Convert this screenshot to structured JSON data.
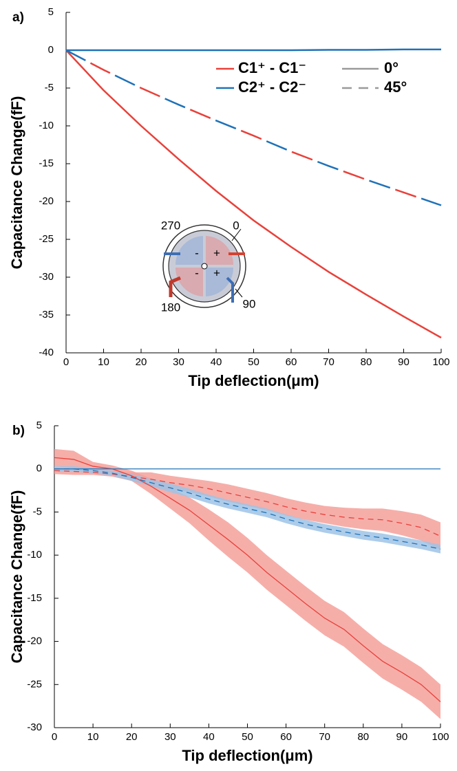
{
  "chart_data": [
    {
      "type": "line",
      "panel_label": "a)",
      "xlabel": "Tip deflection(μm)",
      "ylabel": "Capacitance Change(fF)",
      "x": [
        0,
        10,
        20,
        30,
        40,
        50,
        60,
        70,
        80,
        90,
        100
      ],
      "xlim": [
        0,
        100
      ],
      "ylim": [
        -40,
        5
      ],
      "xticks": [
        0,
        10,
        20,
        30,
        40,
        50,
        60,
        70,
        80,
        90,
        100
      ],
      "yticks": [
        5,
        0,
        -5,
        -10,
        -15,
        -20,
        -25,
        -30,
        -35,
        -40
      ],
      "series": [
        {
          "color": "#1f72b8",
          "style": "solid",
          "values": [
            0,
            0,
            0,
            0,
            0,
            0,
            0,
            0.05,
            0.05,
            0.1,
            0.1
          ]
        },
        {
          "color": "#e8413a",
          "style": "solid",
          "values": [
            0,
            -5.3,
            -10,
            -14.4,
            -18.6,
            -22.5,
            -26,
            -29.3,
            -32.3,
            -35.2,
            -38
          ]
        },
        {
          "color": "#1f72b8",
          "style": "dashed",
          "values": [
            0,
            -2.6,
            -5,
            -7.2,
            -9.3,
            -11.3,
            -13.4,
            -15.3,
            -17.1,
            -18.8,
            -20.5
          ]
        },
        {
          "color": "#e8413a",
          "style": "dashed",
          "values": [
            0,
            -2.6,
            -5,
            -7.2,
            -9.3,
            -11.3,
            -13.4,
            -15.3,
            -17.1,
            -18.8,
            -20.5
          ]
        }
      ],
      "legend": {
        "entries": [
          {
            "name": "C1⁺ - C1⁻",
            "color": "#e8413a"
          },
          {
            "name": "C2⁺ - C2⁻",
            "color": "#1f72b8"
          }
        ],
        "styles": [
          {
            "name": "0°",
            "style": "solid"
          },
          {
            "name": "45°",
            "style": "dashed"
          }
        ]
      },
      "inset": {
        "labels": [
          "270",
          "0",
          "180",
          "90"
        ],
        "signs": [
          "-",
          "+",
          "-",
          "+"
        ]
      }
    },
    {
      "type": "line",
      "panel_label": "b)",
      "xlabel": "Tip deflection(μm)",
      "ylabel": "Capacitance Change(fF)",
      "x": [
        0,
        5,
        10,
        15,
        20,
        25,
        30,
        35,
        40,
        45,
        50,
        55,
        60,
        65,
        70,
        75,
        80,
        85,
        90,
        95,
        100
      ],
      "xlim": [
        0,
        100
      ],
      "ylim": [
        -30,
        5
      ],
      "xticks": [
        0,
        10,
        20,
        30,
        40,
        50,
        60,
        70,
        80,
        90,
        100
      ],
      "yticks": [
        5,
        0,
        -5,
        -10,
        -15,
        -20,
        -25,
        -30
      ],
      "series": [
        {
          "color": "#e8413a",
          "band_color": "#f4a09a",
          "style": "solid",
          "values": [
            1.3,
            1.1,
            0.3,
            0,
            -0.8,
            -2,
            -3.4,
            -4.8,
            -6.5,
            -8.2,
            -10,
            -12,
            -13.8,
            -15.6,
            -17.3,
            -18.6,
            -20.5,
            -22.3,
            -23.6,
            -25,
            -27
          ],
          "error": [
            1,
            1,
            0.5,
            0.4,
            0.6,
            0.9,
            1.2,
            1.5,
            1.8,
            2,
            2,
            2,
            2,
            2,
            2,
            2,
            2,
            2,
            2,
            2,
            2
          ]
        },
        {
          "color": "#e8413a",
          "band_color": "#f4a09a",
          "style": "dashed",
          "values": [
            -0.2,
            -0.3,
            -0.4,
            -0.6,
            -0.9,
            -1.2,
            -1.6,
            -1.9,
            -2.3,
            -2.8,
            -3.3,
            -3.8,
            -4.4,
            -4.9,
            -5.3,
            -5.6,
            -5.8,
            -5.9,
            -6.3,
            -6.8,
            -7.8
          ],
          "error": [
            0.4,
            0.4,
            0.3,
            0.3,
            0.5,
            0.8,
            0.8,
            0.8,
            0.9,
            1,
            1,
            1,
            1,
            1,
            1,
            1.1,
            1.2,
            1.3,
            1.4,
            1.5,
            1.6
          ]
        },
        {
          "color": "#1f72b8",
          "band_color": "#9dc3e6",
          "style": "dashed",
          "values": [
            0,
            0,
            -0.2,
            -0.5,
            -1,
            -1.6,
            -2.2,
            -2.8,
            -3.5,
            -4.1,
            -4.6,
            -5.1,
            -5.8,
            -6.4,
            -6.9,
            -7.3,
            -7.7,
            -8,
            -8.4,
            -8.8,
            -9.3
          ],
          "error": [
            0.3,
            0.3,
            0.3,
            0.3,
            0.4,
            0.4,
            0.5,
            0.5,
            0.5,
            0.5,
            0.5,
            0.5,
            0.5,
            0.5,
            0.5,
            0.5,
            0.5,
            0.5,
            0.5,
            0.5,
            0.5
          ]
        },
        {
          "color": "#1f72b8",
          "style": "solid",
          "values": [
            0,
            0,
            0,
            0,
            0,
            0,
            0,
            0,
            0,
            0,
            0,
            0,
            0,
            0,
            0,
            0,
            0,
            0,
            0,
            0,
            0
          ]
        }
      ]
    }
  ]
}
